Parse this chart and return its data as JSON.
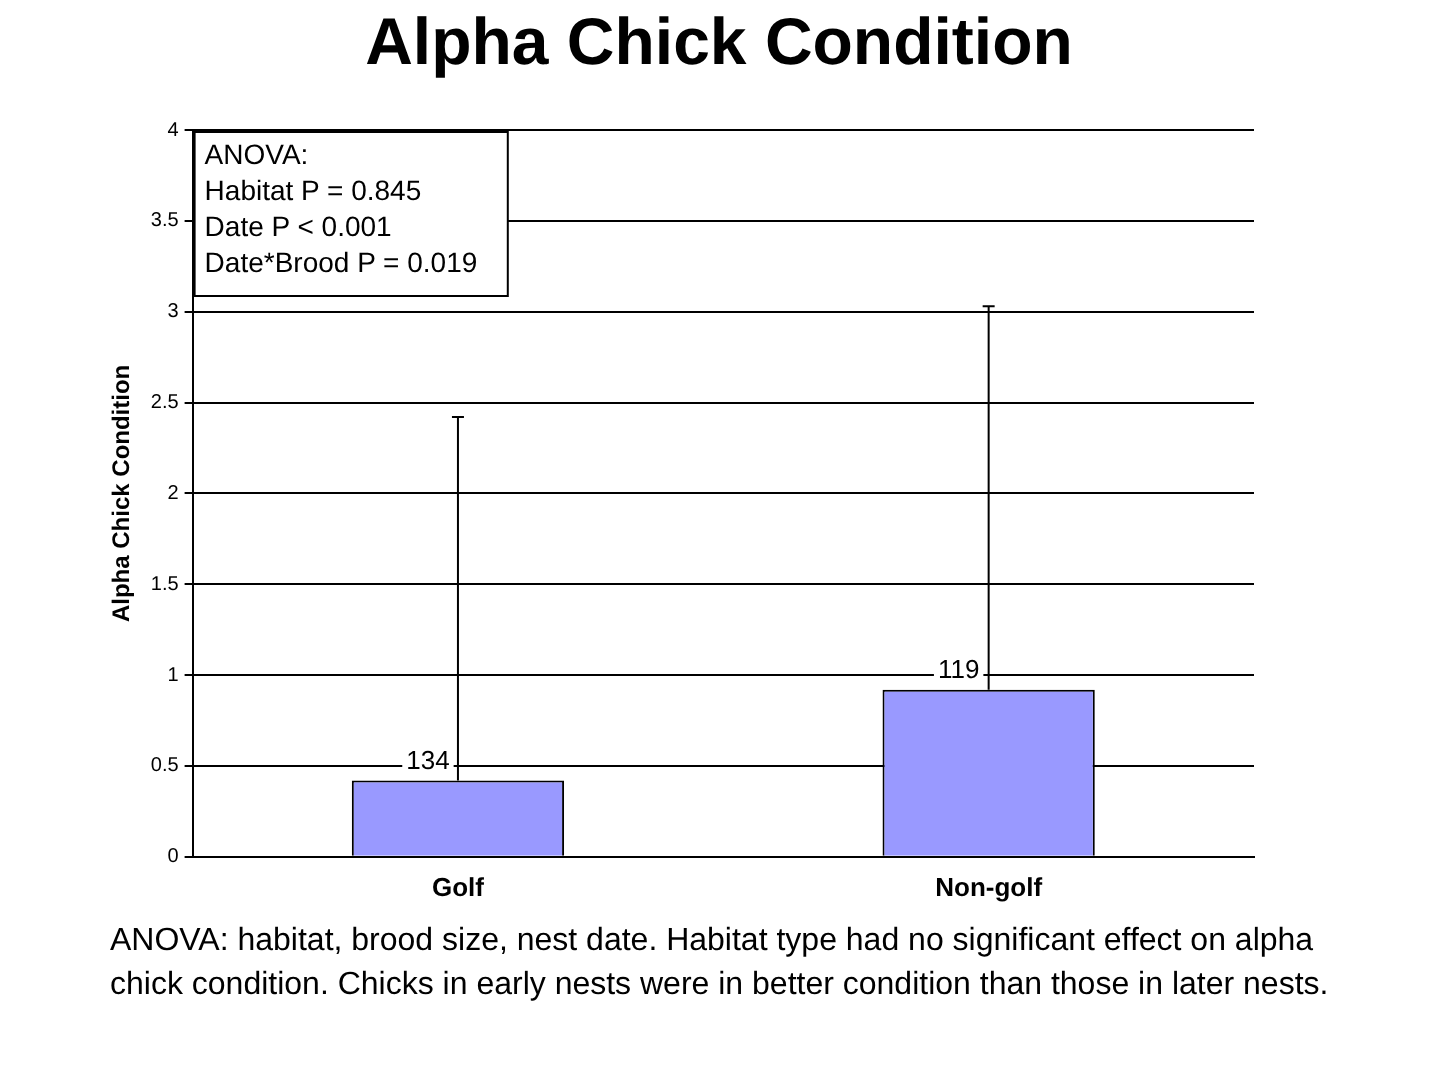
{
  "chart_data": {
    "type": "bar",
    "title": "Alpha Chick Condition",
    "ylabel": "Alpha Chick Condition",
    "categories": [
      "Golf",
      "Non-golf"
    ],
    "series": [
      {
        "color": "#9999ff",
        "values": [
          0.42,
          0.92
        ],
        "errors": [
          [
            0.42,
            2.42
          ],
          [
            0.92,
            3.03
          ]
        ]
      }
    ],
    "ylim": [
      0,
      4
    ],
    "yticks": [
      0,
      0.5,
      1,
      1.5,
      2,
      2.5,
      3,
      3.5,
      4
    ],
    "grid": "y",
    "annotations": [
      {
        "text": "134",
        "x": "Golf",
        "y": 0.42
      },
      {
        "text": "119",
        "x": "Non-golf",
        "y": 0.92
      },
      "ANOVA:",
      "Habitat P = 0.845",
      "Date P < 0.001",
      "Date*Brood P = 0.019",
      "ANOVA: habitat, brood size, nest date.  Habitat type had no significant effect on alpha chick condition.  Chicks in early nests were in better condition than those in later nests."
    ]
  }
}
